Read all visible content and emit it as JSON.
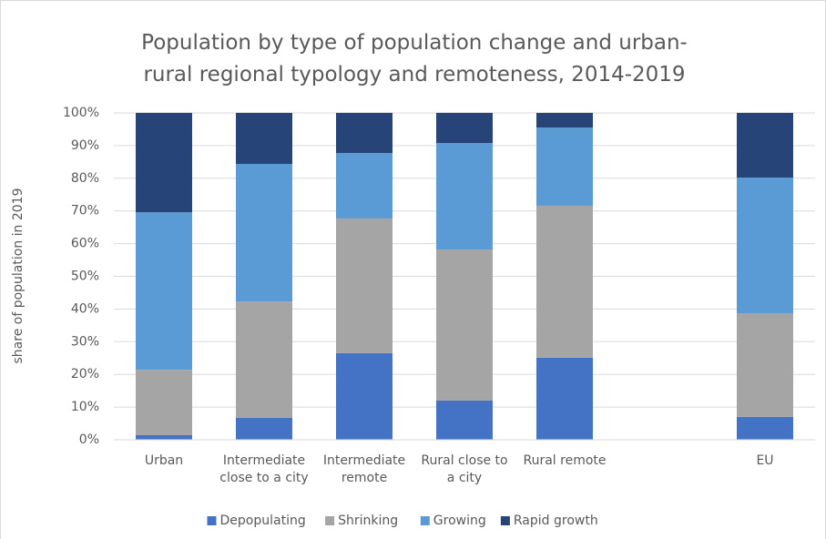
{
  "chart_data": {
    "type": "stacked_bar",
    "title": "Population by type of population change and urban-rural regional typology and remoteness, 2014-2019",
    "y_label": "share of population in 2019",
    "categories": [
      "Urban",
      "Intermediate close to a city",
      "Intermediate remote",
      "Rural close to a city",
      "Rural remote",
      null,
      "EU"
    ],
    "series": [
      {
        "name": "Depopulating",
        "color": "#4472c4",
        "values": [
          1.4,
          6.7,
          26.5,
          12.0,
          25.1,
          null,
          7.0
        ]
      },
      {
        "name": "Shrinking",
        "color": "#a5a5a5",
        "values": [
          20.0,
          35.6,
          41.2,
          46.2,
          46.5,
          null,
          31.7
        ]
      },
      {
        "name": "Growing",
        "color": "#5b9bd5",
        "values": [
          48.2,
          42.1,
          20.0,
          32.6,
          23.9,
          null,
          41.5
        ]
      },
      {
        "name": "Rapid growth",
        "color": "#264478",
        "values": [
          30.4,
          15.6,
          12.3,
          9.2,
          4.5,
          null,
          19.8
        ]
      }
    ],
    "ylim": [
      0,
      100
    ],
    "yticks": [
      {
        "value": 0,
        "label": "0%"
      },
      {
        "value": 10,
        "label": "10%"
      },
      {
        "value": 20,
        "label": "20%"
      },
      {
        "value": 30,
        "label": "30%"
      },
      {
        "value": 40,
        "label": "40%"
      },
      {
        "value": 50,
        "label": "50%"
      },
      {
        "value": 60,
        "label": "60%"
      },
      {
        "value": 70,
        "label": "70%"
      },
      {
        "value": 80,
        "label": "80%"
      },
      {
        "value": 90,
        "label": "90%"
      },
      {
        "value": 100,
        "label": "100%"
      }
    ],
    "grid": true,
    "legend": "bottom"
  }
}
